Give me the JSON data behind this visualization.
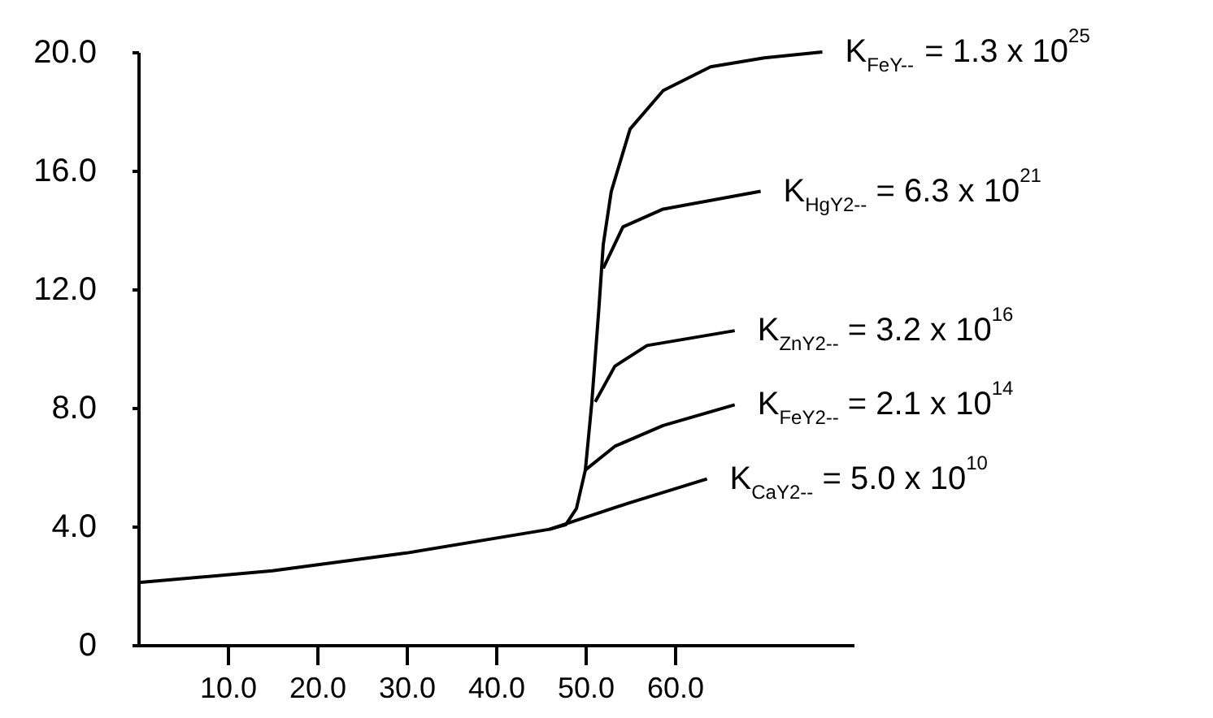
{
  "chart_data": {
    "type": "line",
    "xlim": [
      0,
      80
    ],
    "ylim": [
      0,
      20
    ],
    "xticks": [
      {
        "value": 10,
        "label": "10.0"
      },
      {
        "value": 20,
        "label": "20.0"
      },
      {
        "value": 30,
        "label": "30.0"
      },
      {
        "value": 40,
        "label": "40.0"
      },
      {
        "value": 50,
        "label": "50.0"
      },
      {
        "value": 60,
        "label": "60.0"
      }
    ],
    "yticks": [
      0,
      {
        "value": 4,
        "label": "4.0"
      },
      {
        "value": 8,
        "label": "8.0"
      },
      {
        "value": 12,
        "label": "12.0"
      },
      {
        "value": 16,
        "label": "16.0"
      },
      {
        "value": 20,
        "label": "20.0"
      }
    ],
    "grid": false,
    "legend": false,
    "marker": "none",
    "line_style": "solid",
    "series": [
      {
        "color": "#000000",
        "x": [
          0,
          15,
          30,
          46,
          55,
          63.6
        ],
        "values": [
          2.1,
          2.5,
          3.1,
          3.9,
          4.8,
          5.6
        ]
      },
      {
        "color": "#000000",
        "x": [
          46,
          47.8,
          49,
          50,
          50.7,
          51.5,
          52,
          52.9,
          55,
          58.7,
          64,
          70,
          76.5
        ],
        "values": [
          3.9,
          4.05,
          4.6,
          5.9,
          8.1,
          11.3,
          13.5,
          15.3,
          17.4,
          18.7,
          19.5,
          19.8,
          20.0
        ]
      },
      {
        "color": "#000000",
        "x": [
          52,
          54.2,
          58.7,
          69.6
        ],
        "values": [
          12.7,
          14.1,
          14.7,
          15.3
        ]
      },
      {
        "color": "#000000",
        "x": [
          51.1,
          53.3,
          56.9,
          66.7
        ],
        "values": [
          8.2,
          9.4,
          10.1,
          10.6
        ]
      },
      {
        "color": "#000000",
        "x": [
          50,
          53.3,
          58.7,
          66.7
        ],
        "values": [
          5.9,
          6.7,
          7.4,
          8.1
        ]
      }
    ],
    "annotations": [
      {
        "text": "K$_{FeY--}$ = 1.3 x 10$^{25}$",
        "x": 76.5,
        "y": 20.0
      },
      {
        "text": "K$_{HgY2--}$ = 6.3 x 10$^{21}$",
        "x": 69.6,
        "y": 15.3
      },
      {
        "text": "K$_{ZnY2--}$ = 3.2 x 10$^{16}$",
        "x": 66.7,
        "y": 10.6
      },
      {
        "text": "K$_{FeY2--}$ = 2.1 x 10$^{14}$",
        "x": 66.7,
        "y": 8.1
      },
      {
        "text": "K$_{CaY2--}$ = 5.0 x 10$^{10}$",
        "x": 63.6,
        "y": 5.6
      }
    ]
  }
}
